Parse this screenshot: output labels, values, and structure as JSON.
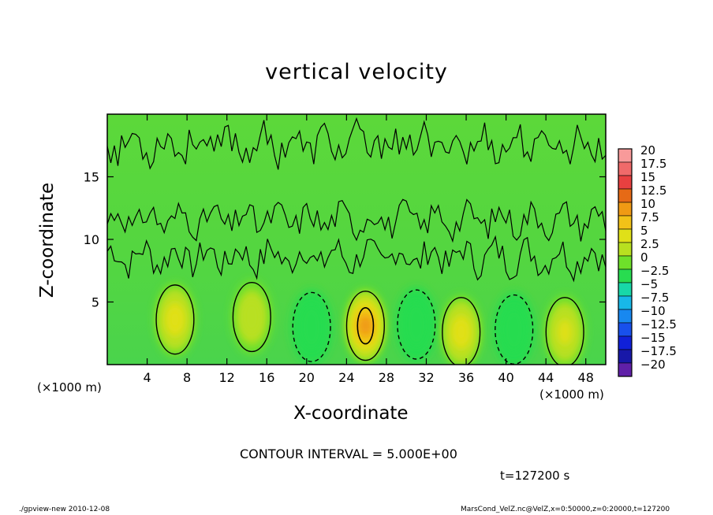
{
  "chart_data": {
    "type": "heatmap",
    "title": "vertical velocity",
    "xlabel": "X-coordinate",
    "ylabel": "Z-coordinate",
    "x_unit": "(×1000 m)",
    "z_unit": "(×1000 m)",
    "x_range": [
      0,
      50
    ],
    "z_range": [
      0,
      20
    ],
    "x_ticks": [
      4,
      8,
      12,
      16,
      20,
      24,
      28,
      32,
      36,
      40,
      44,
      48
    ],
    "z_ticks": [
      5,
      10,
      15
    ],
    "contour_note": "CONTOUR INTERVAL = 5.000E+00",
    "time_label": "t=127200 s",
    "colorbar": {
      "labels": [
        "20",
        "17.5",
        "15",
        "12.5",
        "10",
        "7.5",
        "5",
        "2.5",
        "0",
        "−2.5",
        "−5",
        "−7.5",
        "−10",
        "−12.5",
        "−15",
        "−17.5",
        "−20"
      ],
      "colors": [
        "#f89a9a",
        "#f06a6a",
        "#e84040",
        "#e66a16",
        "#f09a14",
        "#f2c218",
        "#e0e018",
        "#b8e020",
        "#6ee02a",
        "#28dc50",
        "#18d8a8",
        "#18b8e8",
        "#1888f0",
        "#1850ec",
        "#1020d8",
        "#1818a8",
        "#6020a8"
      ]
    },
    "cells": [
      {
        "x": 6.8,
        "z": 3.6,
        "w": 2.6
      },
      {
        "x": 14.5,
        "z": 3.8,
        "w": 1.4
      },
      {
        "x": 20.5,
        "z": 3.0,
        "w": -0.9
      },
      {
        "x": 25.9,
        "z": 3.1,
        "w": 4.6
      },
      {
        "x": 31.0,
        "z": 3.2,
        "w": -0.9
      },
      {
        "x": 35.5,
        "z": 2.6,
        "w": 2.4
      },
      {
        "x": 40.8,
        "z": 2.8,
        "w": -1.0
      },
      {
        "x": 45.9,
        "z": 2.6,
        "w": 2.2
      }
    ]
  },
  "footer": {
    "left": "./gpview-new   2010-12-08",
    "right": "MarsCond_VelZ.nc@VelZ,x=0:50000,z=0:20000,t=127200"
  }
}
